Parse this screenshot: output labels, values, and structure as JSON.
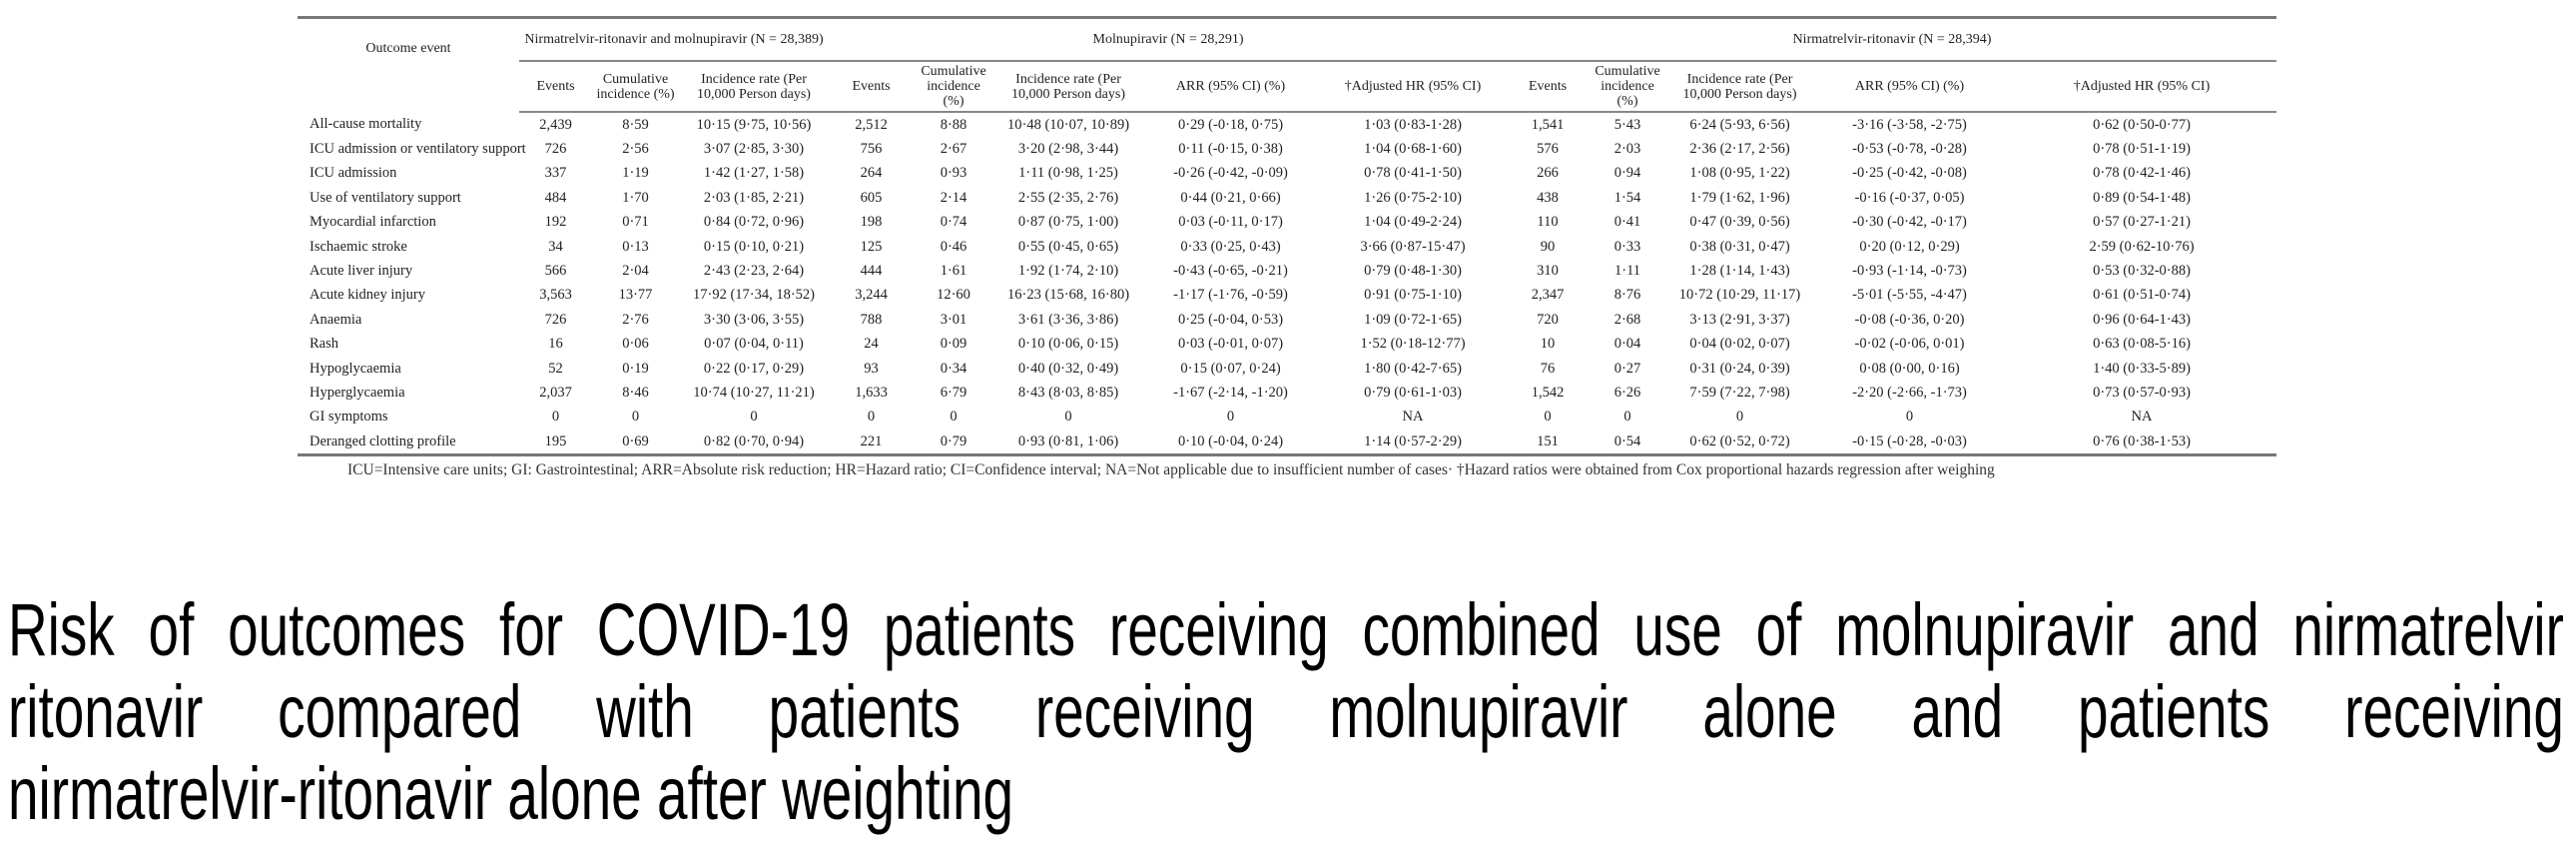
{
  "table": {
    "outcome_header": "Outcome event",
    "groups": [
      {
        "title": "Nirmatrelvir-ritonavir and molnupiravir (N = 28,389)"
      },
      {
        "title": "Molnupiravir (N = 28,291)"
      },
      {
        "title": "Nirmatrelvir-ritonavir (N = 28,394)"
      }
    ],
    "columns": [
      "Events",
      "Cumulative incidence (%)",
      "Incidence rate (Per 10,000 Person days)",
      "Events",
      "Cumulative incidence (%)",
      "Incidence rate (Per 10,000 Person days)",
      "ARR (95% CI) (%)",
      "†Adjusted HR (95% CI)",
      "Events",
      "Cumulative incidence (%)",
      "Incidence rate (Per 10,000 Person days)",
      "ARR (95% CI) (%)",
      "†Adjusted HR (95% CI)"
    ],
    "rows": [
      [
        "All-cause mortality",
        "2,439",
        "8·59",
        "10·15 (9·75, 10·56)",
        "2,512",
        "8·88",
        "10·48 (10·07, 10·89)",
        "0·29 (-0·18, 0·75)",
        "1·03 (0·83-1·28)",
        "1,541",
        "5·43",
        "6·24 (5·93, 6·56)",
        "-3·16 (-3·58, -2·75)",
        "0·62 (0·50-0·77)"
      ],
      [
        "ICU admission or ventilatory support",
        "726",
        "2·56",
        "3·07 (2·85, 3·30)",
        "756",
        "2·67",
        "3·20 (2·98, 3·44)",
        "0·11 (-0·15, 0·38)",
        "1·04 (0·68-1·60)",
        "576",
        "2·03",
        "2·36 (2·17, 2·56)",
        "-0·53 (-0·78, -0·28)",
        "0·78 (0·51-1·19)"
      ],
      [
        "ICU admission",
        "337",
        "1·19",
        "1·42 (1·27, 1·58)",
        "264",
        "0·93",
        "1·11 (0·98, 1·25)",
        "-0·26 (-0·42, -0·09)",
        "0·78 (0·41-1·50)",
        "266",
        "0·94",
        "1·08 (0·95, 1·22)",
        "-0·25 (-0·42, -0·08)",
        "0·78 (0·42-1·46)"
      ],
      [
        "Use of ventilatory support",
        "484",
        "1·70",
        "2·03 (1·85, 2·21)",
        "605",
        "2·14",
        "2·55 (2·35, 2·76)",
        "0·44 (0·21, 0·66)",
        "1·26 (0·75-2·10)",
        "438",
        "1·54",
        "1·79 (1·62, 1·96)",
        "-0·16 (-0·37, 0·05)",
        "0·89 (0·54-1·48)"
      ],
      [
        "Myocardial infarction",
        "192",
        "0·71",
        "0·84 (0·72, 0·96)",
        "198",
        "0·74",
        "0·87 (0·75, 1·00)",
        "0·03 (-0·11, 0·17)",
        "1·04 (0·49-2·24)",
        "110",
        "0·41",
        "0·47 (0·39, 0·56)",
        "-0·30 (-0·42, -0·17)",
        "0·57 (0·27-1·21)"
      ],
      [
        "Ischaemic stroke",
        "34",
        "0·13",
        "0·15 (0·10, 0·21)",
        "125",
        "0·46",
        "0·55 (0·45, 0·65)",
        "0·33 (0·25, 0·43)",
        "3·66 (0·87-15·47)",
        "90",
        "0·33",
        "0·38 (0·31, 0·47)",
        "0·20 (0·12, 0·29)",
        "2·59 (0·62-10·76)"
      ],
      [
        "Acute liver injury",
        "566",
        "2·04",
        "2·43 (2·23, 2·64)",
        "444",
        "1·61",
        "1·92 (1·74, 2·10)",
        "-0·43 (-0·65, -0·21)",
        "0·79 (0·48-1·30)",
        "310",
        "1·11",
        "1·28 (1·14, 1·43)",
        "-0·93 (-1·14, -0·73)",
        "0·53 (0·32-0·88)"
      ],
      [
        "Acute kidney injury",
        "3,563",
        "13·77",
        "17·92 (17·34, 18·52)",
        "3,244",
        "12·60",
        "16·23 (15·68, 16·80)",
        "-1·17 (-1·76, -0·59)",
        "0·91 (0·75-1·10)",
        "2,347",
        "8·76",
        "10·72 (10·29, 11·17)",
        "-5·01 (-5·55, -4·47)",
        "0·61 (0·51-0·74)"
      ],
      [
        "Anaemia",
        "726",
        "2·76",
        "3·30 (3·06, 3·55)",
        "788",
        "3·01",
        "3·61 (3·36, 3·86)",
        "0·25 (-0·04, 0·53)",
        "1·09 (0·72-1·65)",
        "720",
        "2·68",
        "3·13 (2·91, 3·37)",
        "-0·08 (-0·36, 0·20)",
        "0·96 (0·64-1·43)"
      ],
      [
        "Rash",
        "16",
        "0·06",
        "0·07 (0·04, 0·11)",
        "24",
        "0·09",
        "0·10 (0·06, 0·15)",
        "0·03 (-0·01, 0·07)",
        "1·52 (0·18-12·77)",
        "10",
        "0·04",
        "0·04 (0·02, 0·07)",
        "-0·02 (-0·06, 0·01)",
        "0·63 (0·08-5·16)"
      ],
      [
        "Hypoglycaemia",
        "52",
        "0·19",
        "0·22 (0·17, 0·29)",
        "93",
        "0·34",
        "0·40 (0·32, 0·49)",
        "0·15 (0·07, 0·24)",
        "1·80 (0·42-7·65)",
        "76",
        "0·27",
        "0·31 (0·24, 0·39)",
        "0·08 (0·00, 0·16)",
        "1·40 (0·33-5·89)"
      ],
      [
        "Hyperglycaemia",
        "2,037",
        "8·46",
        "10·74 (10·27, 11·21)",
        "1,633",
        "6·79",
        "8·43 (8·03, 8·85)",
        "-1·67 (-2·14, -1·20)",
        "0·79 (0·61-1·03)",
        "1,542",
        "6·26",
        "7·59 (7·22, 7·98)",
        "-2·20 (-2·66, -1·73)",
        "0·73 (0·57-0·93)"
      ],
      [
        "GI symptoms",
        "0",
        "0",
        "0",
        "0",
        "0",
        "0",
        "0",
        "NA",
        "0",
        "0",
        "0",
        "0",
        "NA"
      ],
      [
        "Deranged clotting profile",
        "195",
        "0·69",
        "0·82 (0·70, 0·94)",
        "221",
        "0·79",
        "0·93 (0·81, 1·06)",
        "0·10 (-0·04, 0·24)",
        "1·14 (0·57-2·29)",
        "151",
        "0·54",
        "0·62 (0·52, 0·72)",
        "-0·15 (-0·28, -0·03)",
        "0·76 (0·38-1·53)"
      ]
    ],
    "footnote": "ICU=Intensive care units; GI:  Gastrointestinal; ARR=Absolute risk reduction; HR=Hazard ratio; CI=Confidence interval; NA=Not applicable due to insufficient number of cases· †Hazard ratios were obtained from Cox proportional hazards regression after weighing"
  },
  "caption": {
    "line1": "Risk of outcomes for COVID-19 patients receiving combined use of molnupiravir and nirmatrelvir",
    "line2": "ritonavir compared with patients receiving molnupiravir alone and patients receiving",
    "line3": "nirmatrelvir-ritonavir alone after weighting"
  }
}
